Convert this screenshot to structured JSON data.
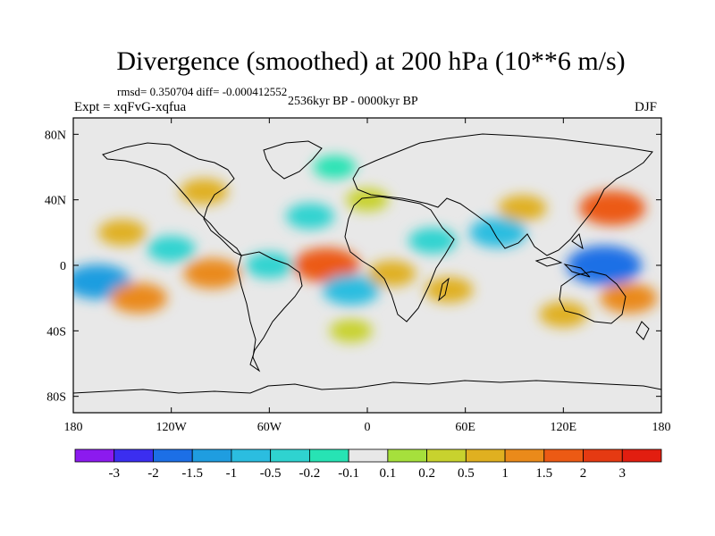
{
  "chart_data": {
    "type": "heatmap",
    "title": "Divergence (smoothed) at 200 hPa (10**6 m/s)",
    "subtitle_stats": "rmsd= 0.350704 diff= -0.000412552",
    "subtitle_period": "2536kyr BP - 0000kyr BP",
    "experiment": "Expt = xqFvG-xqfua",
    "season": "DJF",
    "x_ticks": [
      "180",
      "120W",
      "60W",
      "0",
      "60E",
      "120E",
      "180"
    ],
    "y_ticks": [
      "80N",
      "40N",
      "0",
      "40S",
      "80S"
    ],
    "colorbar": {
      "levels": [
        "-3",
        "-2",
        "-1.5",
        "-1",
        "-0.5",
        "-0.2",
        "-0.1",
        "0.1",
        "0.2",
        "0.5",
        "1",
        "1.5",
        "2",
        "3"
      ],
      "colors": [
        "#8c1aef",
        "#3b2ef0",
        "#1c6fe6",
        "#1f9de0",
        "#2bbde0",
        "#2fd3d0",
        "#27e3b4",
        "#e8e8e8",
        "#a6e03c",
        "#c8d22e",
        "#e0b020",
        "#ea8a1a",
        "#ec5a14",
        "#e53a12",
        "#e21e10"
      ]
    },
    "field_features": [
      {
        "lon": -165,
        "lat": -10,
        "value": -1.5
      },
      {
        "lon": -140,
        "lat": -20,
        "value": 1.0
      },
      {
        "lon": -150,
        "lat": 20,
        "value": 0.5
      },
      {
        "lon": -120,
        "lat": 10,
        "value": -0.5
      },
      {
        "lon": -95,
        "lat": -5,
        "value": 1.0
      },
      {
        "lon": -60,
        "lat": 0,
        "value": -0.5
      },
      {
        "lon": -25,
        "lat": 0,
        "value": 1.5
      },
      {
        "lon": -10,
        "lat": -15,
        "value": -1.0
      },
      {
        "lon": -35,
        "lat": 30,
        "value": -0.5
      },
      {
        "lon": 0,
        "lat": 40,
        "value": 0.2
      },
      {
        "lon": 15,
        "lat": -5,
        "value": 0.5
      },
      {
        "lon": 40,
        "lat": 15,
        "value": -0.5
      },
      {
        "lon": 50,
        "lat": -15,
        "value": 0.5
      },
      {
        "lon": 80,
        "lat": 20,
        "value": -1.0
      },
      {
        "lon": 95,
        "lat": 35,
        "value": 0.5
      },
      {
        "lon": 145,
        "lat": 0,
        "value": -2.0
      },
      {
        "lon": 150,
        "lat": 35,
        "value": 1.5
      },
      {
        "lon": 160,
        "lat": -20,
        "value": 1.0
      },
      {
        "lon": 120,
        "lat": -30,
        "value": 0.5
      },
      {
        "lon": -100,
        "lat": 45,
        "value": 0.5
      },
      {
        "lon": -20,
        "lat": 60,
        "value": -0.2
      },
      {
        "lon": -10,
        "lat": -40,
        "value": 0.2
      }
    ]
  }
}
